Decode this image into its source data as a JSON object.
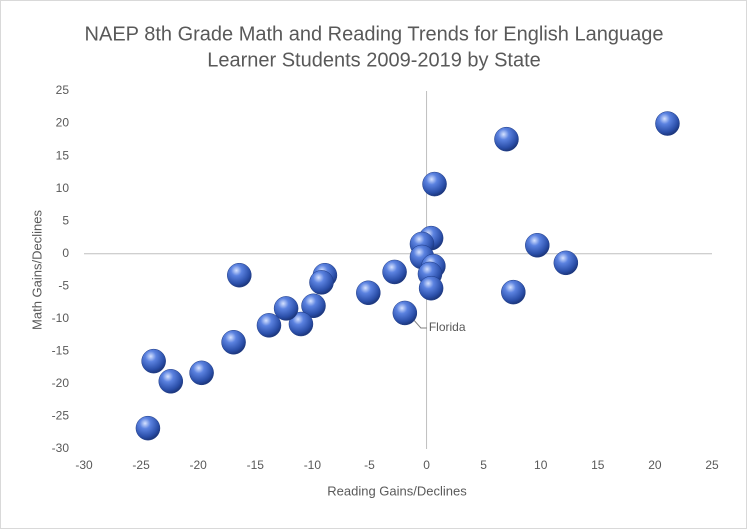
{
  "chart_data": {
    "type": "scatter",
    "title": [
      "NAEP 8th Grade Math and Reading Trends for English Language",
      "Learner Students 2009-2019 by State"
    ],
    "x_label": "Reading Gains/Declines",
    "y_label": "Math Gains/Declines",
    "color": "#3a5fc4",
    "x": [
      21.1,
      7.0,
      0.7,
      9.7,
      12.2,
      7.6,
      0.4,
      -0.4,
      -0.4,
      0.6,
      0.3,
      0.4,
      -2.8,
      -1.9,
      -5.1,
      -8.9,
      -9.2,
      -9.9,
      -11.0,
      -12.3,
      -13.8,
      -16.4,
      -16.9,
      -19.7,
      -22.4,
      -23.9,
      -24.4
    ],
    "y": [
      20.0,
      17.6,
      10.7,
      1.3,
      -1.4,
      -5.9,
      2.4,
      1.5,
      -0.5,
      -1.9,
      -3.1,
      -5.3,
      -2.8,
      -9.1,
      -6.0,
      -3.3,
      -4.4,
      -8.0,
      -10.8,
      -8.4,
      -11.0,
      -3.3,
      -13.6,
      -18.3,
      -19.6,
      -16.5,
      -26.8
    ],
    "xlim": [
      -30,
      25
    ],
    "xticks": [
      -30,
      -25,
      -20,
      -15,
      -10,
      -5,
      0,
      5,
      10,
      15,
      20,
      25
    ],
    "ylim": [
      -30,
      25
    ],
    "yticks": [
      -30,
      -25,
      -20,
      -15,
      -10,
      -5,
      0,
      5,
      10,
      15,
      20,
      25
    ],
    "annotations": [
      {
        "text": "Florida",
        "x": -1.9,
        "y": -9.1
      }
    ]
  }
}
